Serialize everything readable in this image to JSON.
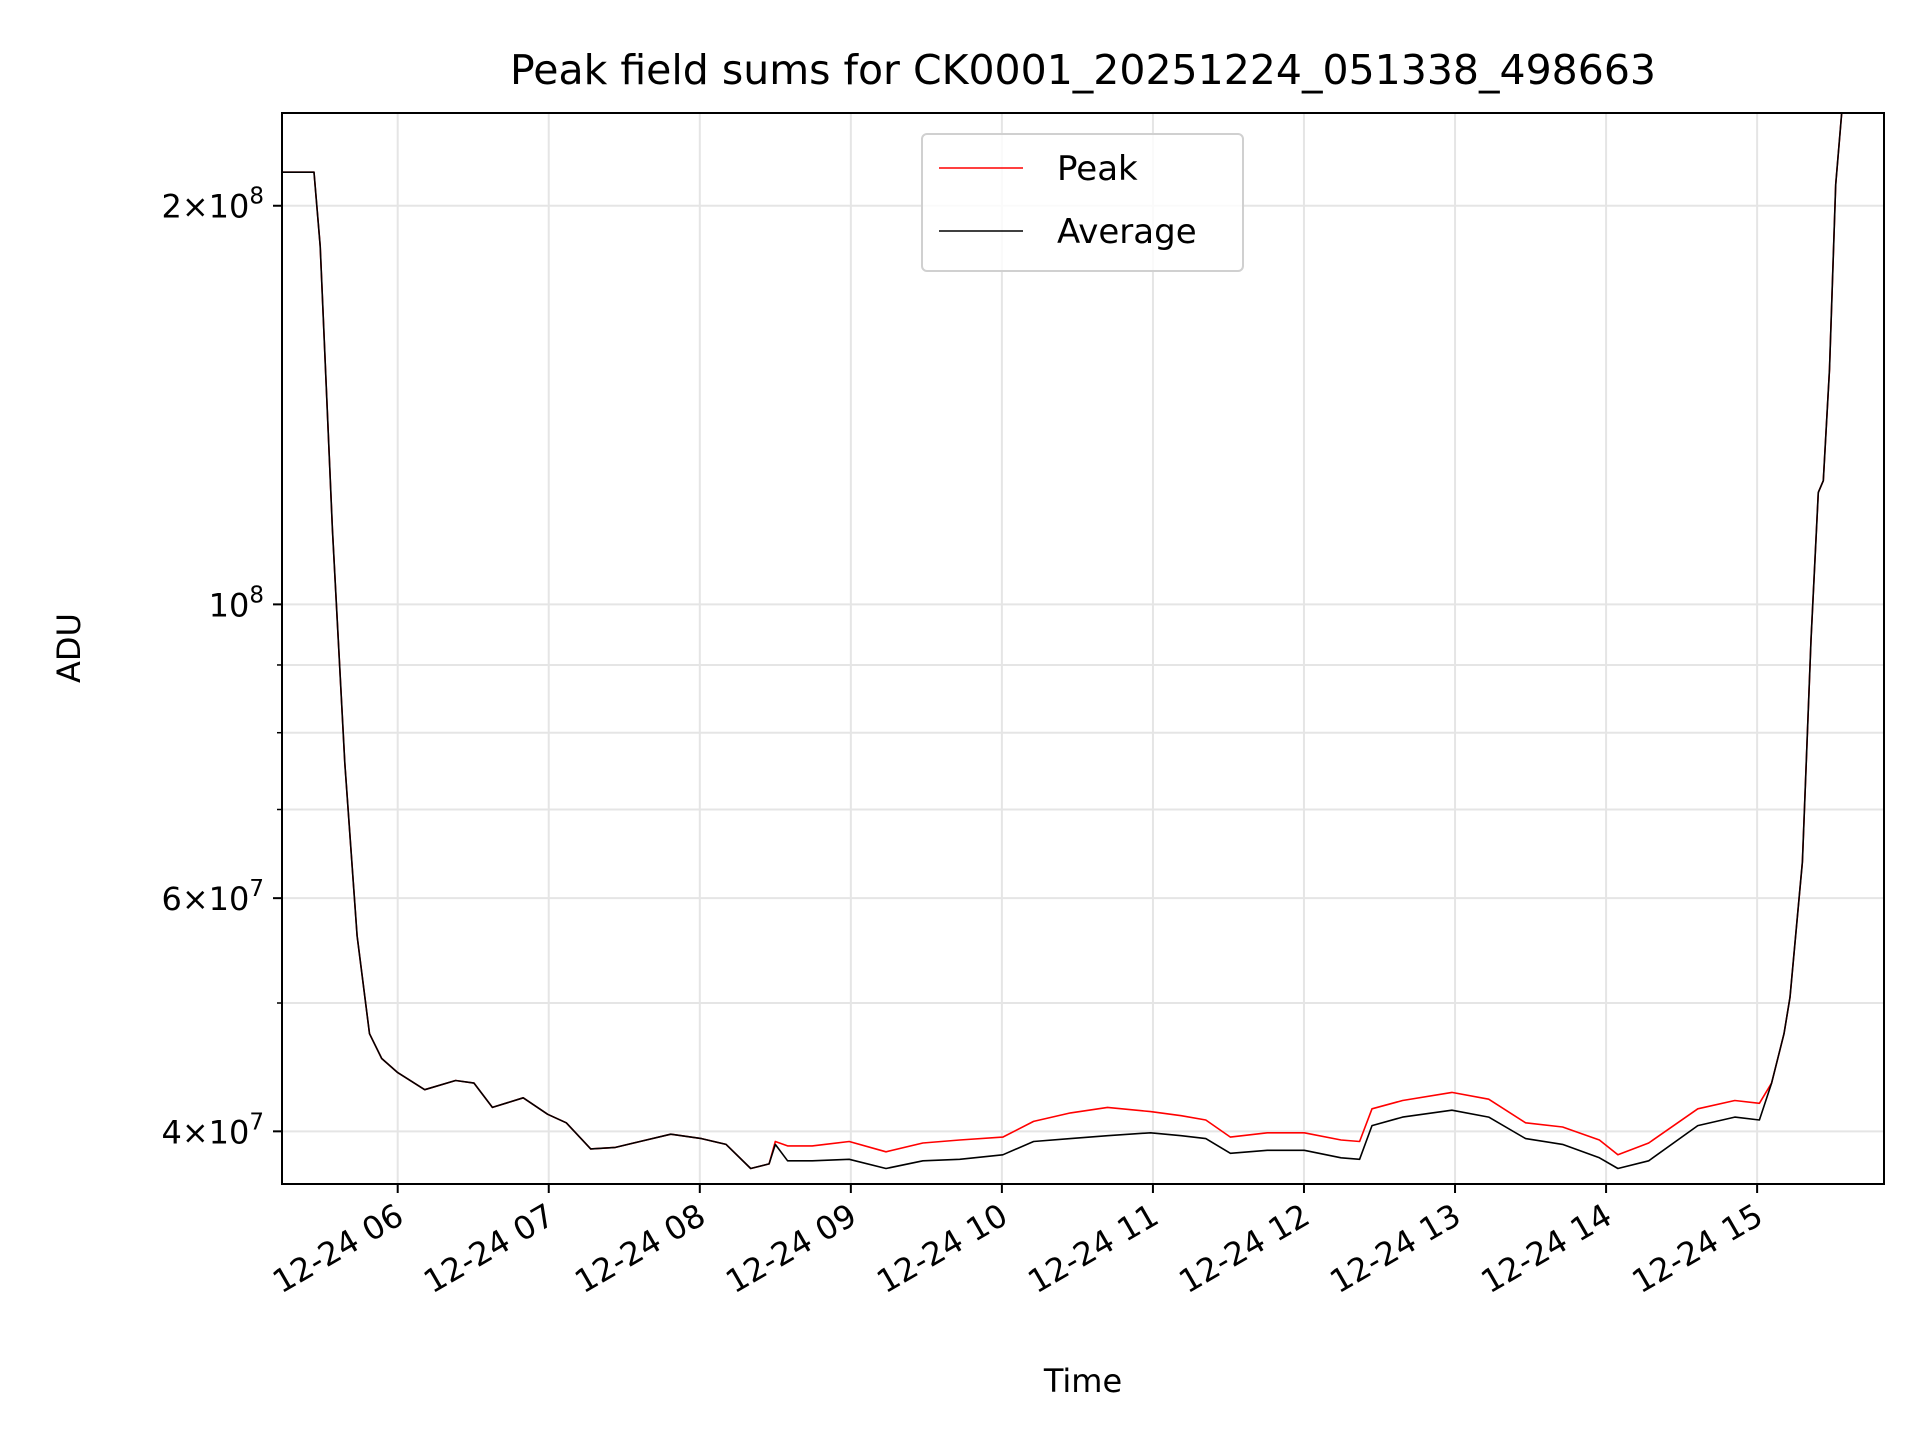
{
  "chart_data": {
    "type": "line",
    "title": "Peak field sums for CK0001_20251224_051338_498663",
    "xlabel": "Time",
    "ylabel": "ADU",
    "yscale": "log",
    "ylim": [
      36500000,
      235000000
    ],
    "xlim_hours": [
      5.234,
      15.84
    ],
    "grid": true,
    "legend_position": "upper center",
    "x_ticks": [
      {
        "hour": 6,
        "label": "12-24 06"
      },
      {
        "hour": 7,
        "label": "12-24 07"
      },
      {
        "hour": 8,
        "label": "12-24 08"
      },
      {
        "hour": 9,
        "label": "12-24 09"
      },
      {
        "hour": 10,
        "label": "12-24 10"
      },
      {
        "hour": 11,
        "label": "12-24 11"
      },
      {
        "hour": 12,
        "label": "12-24 12"
      },
      {
        "hour": 13,
        "label": "12-24 13"
      },
      {
        "hour": 14,
        "label": "12-24 14"
      },
      {
        "hour": 15,
        "label": "12-24 15"
      }
    ],
    "y_ticks": [
      {
        "value": 200000000,
        "mant": "2",
        "exp": "8"
      },
      {
        "value": 100000000,
        "mant": "",
        "exp": "8"
      },
      {
        "value": 60000000,
        "mant": "6",
        "exp": "7"
      },
      {
        "value": 40000000,
        "mant": "4",
        "exp": "7"
      }
    ],
    "y_minor_grid": [
      50000000,
      70000000,
      80000000,
      90000000
    ],
    "x_hours": [
      5.234,
      5.446,
      5.487,
      5.568,
      5.65,
      5.731,
      5.813,
      5.894,
      6.0,
      6.179,
      6.383,
      6.505,
      6.627,
      6.831,
      6.993,
      7.116,
      7.278,
      7.441,
      7.604,
      7.808,
      8.011,
      8.174,
      8.337,
      8.459,
      8.5,
      8.581,
      8.744,
      8.989,
      9.233,
      9.477,
      9.721,
      10.006,
      10.21,
      10.454,
      10.699,
      10.984,
      11.187,
      11.35,
      11.513,
      11.757,
      12.002,
      12.246,
      12.368,
      12.45,
      12.653,
      12.979,
      13.223,
      13.467,
      13.712,
      13.956,
      14.078,
      14.282,
      14.607,
      14.852,
      15.015,
      15.096,
      15.178,
      15.218,
      15.3,
      15.357,
      15.405,
      15.438,
      15.479,
      15.52,
      15.56
    ],
    "series": [
      {
        "name": "Peak",
        "color": "#ff0000",
        "values_millions": [
          212,
          212,
          186.4,
          114,
          75.9,
          56.2,
          47.4,
          45.4,
          44.3,
          43.0,
          43.7,
          43.5,
          41.7,
          42.4,
          41.2,
          40.6,
          38.8,
          38.9,
          39.3,
          39.8,
          39.5,
          39.1,
          37.5,
          37.8,
          39.3,
          39.0,
          39.0,
          39.3,
          38.6,
          39.2,
          39.4,
          39.6,
          40.7,
          41.3,
          41.7,
          41.4,
          41.1,
          40.8,
          39.6,
          39.9,
          39.9,
          39.4,
          39.3,
          41.6,
          42.2,
          42.8,
          42.3,
          40.6,
          40.3,
          39.4,
          38.4,
          39.2,
          41.6,
          42.2,
          42.0,
          43.5,
          47.4,
          50.5,
          63.9,
          94,
          121.5,
          124,
          150.5,
          207.5,
          235
        ]
      },
      {
        "name": "Average",
        "color": "#000000",
        "values_millions": [
          212,
          212,
          186.4,
          114,
          75.9,
          56.2,
          47.4,
          45.4,
          44.3,
          43.0,
          43.7,
          43.5,
          41.7,
          42.4,
          41.2,
          40.6,
          38.8,
          38.9,
          39.3,
          39.8,
          39.5,
          39.1,
          37.5,
          37.8,
          39.1,
          38.0,
          38.0,
          38.1,
          37.5,
          38.0,
          38.1,
          38.4,
          39.3,
          39.5,
          39.7,
          39.9,
          39.7,
          39.5,
          38.5,
          38.7,
          38.7,
          38.2,
          38.1,
          40.4,
          41.0,
          41.5,
          41.0,
          39.5,
          39.1,
          38.2,
          37.5,
          38.0,
          40.4,
          41.0,
          40.8,
          43.5,
          47.4,
          50.5,
          63.9,
          94,
          121.5,
          124,
          150.5,
          207.5,
          235
        ]
      }
    ]
  }
}
